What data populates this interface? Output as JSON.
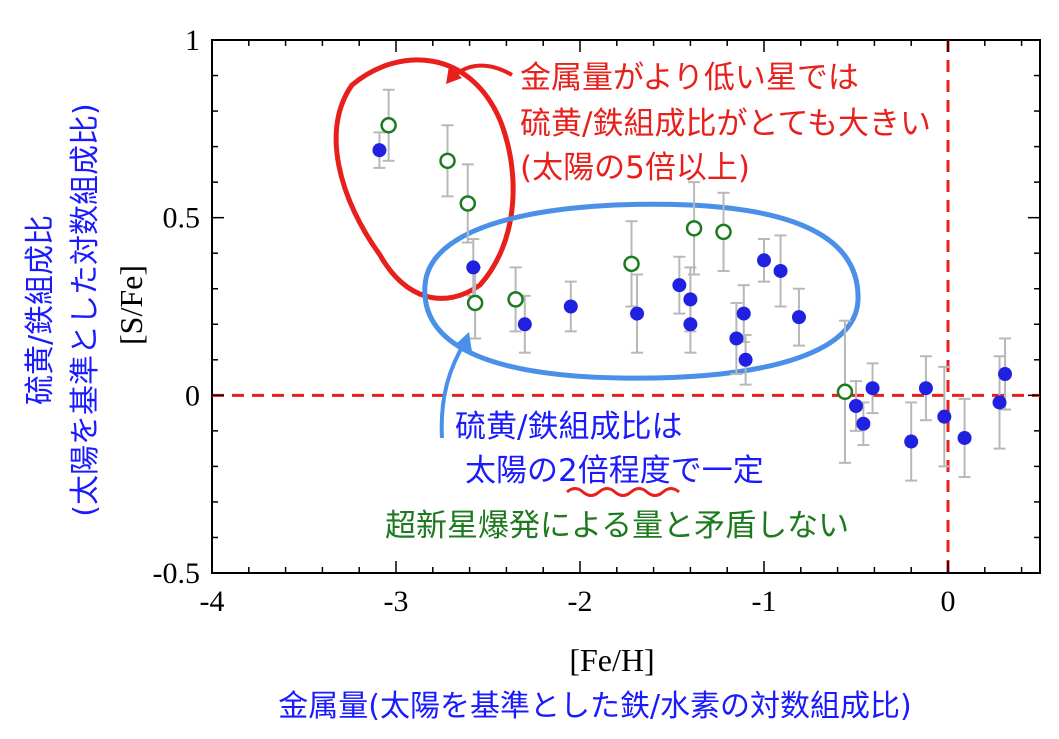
{
  "chart_data": {
    "type": "scatter",
    "xlabel": "[Fe/H]",
    "ylabel": "[S/Fe]",
    "xlim": [
      -4,
      0.5
    ],
    "ylim": [
      -0.5,
      1
    ],
    "x_ticks": [
      -4,
      -3,
      -2,
      -1,
      0
    ],
    "x_tick_labels": [
      "-4",
      "-3",
      "-2",
      "-1",
      "0"
    ],
    "y_ticks": [
      -0.5,
      0,
      0.5,
      1
    ],
    "y_tick_labels": [
      "-0.5",
      "0",
      "0.5",
      "1"
    ],
    "grid": false,
    "reference_lines": {
      "x": 0,
      "y": 0,
      "color": "#e8201c",
      "style": "dashed"
    },
    "series": [
      {
        "marker": "filled-circle",
        "color": "#2020e0",
        "points": [
          {
            "x": -3.09,
            "y": 0.69,
            "err": 0.05
          },
          {
            "x": -2.58,
            "y": 0.36,
            "err": 0.08
          },
          {
            "x": -2.3,
            "y": 0.2,
            "err": 0.08
          },
          {
            "x": -2.05,
            "y": 0.25,
            "err": 0.07
          },
          {
            "x": -1.69,
            "y": 0.23,
            "err": 0.11
          },
          {
            "x": -1.46,
            "y": 0.31,
            "err": 0.08
          },
          {
            "x": -1.4,
            "y": 0.27,
            "err": 0.09
          },
          {
            "x": -1.4,
            "y": 0.2,
            "err": 0.08
          },
          {
            "x": -1.15,
            "y": 0.16,
            "err": 0.1
          },
          {
            "x": -1.11,
            "y": 0.23,
            "err": 0.08
          },
          {
            "x": -1.1,
            "y": 0.1,
            "err": 0.07
          },
          {
            "x": -1.0,
            "y": 0.38,
            "err": 0.06
          },
          {
            "x": -0.91,
            "y": 0.35,
            "err": 0.1
          },
          {
            "x": -0.81,
            "y": 0.22,
            "err": 0.08
          },
          {
            "x": -0.5,
            "y": -0.03,
            "err": 0.07
          },
          {
            "x": -0.46,
            "y": -0.08,
            "err": 0.06
          },
          {
            "x": -0.41,
            "y": 0.02,
            "err": 0.07
          },
          {
            "x": -0.2,
            "y": -0.13,
            "err": 0.11
          },
          {
            "x": -0.12,
            "y": 0.02,
            "err": 0.09
          },
          {
            "x": -0.02,
            "y": -0.06,
            "err": 0.14
          },
          {
            "x": 0.09,
            "y": -0.12,
            "err": 0.11
          },
          {
            "x": 0.28,
            "y": -0.02,
            "err": 0.13
          },
          {
            "x": 0.31,
            "y": 0.06,
            "err": 0.1
          }
        ]
      },
      {
        "marker": "open-circle",
        "color": "#1e7a1e",
        "points": [
          {
            "x": -3.04,
            "y": 0.76,
            "err": 0.1
          },
          {
            "x": -2.72,
            "y": 0.66,
            "err": 0.1
          },
          {
            "x": -2.61,
            "y": 0.54,
            "err": 0.11
          },
          {
            "x": -2.57,
            "y": 0.26,
            "err": 0.1
          },
          {
            "x": -2.35,
            "y": 0.27,
            "err": 0.09
          },
          {
            "x": -1.72,
            "y": 0.37,
            "err": 0.12
          },
          {
            "x": -1.38,
            "y": 0.47,
            "err": 0.13
          },
          {
            "x": -1.22,
            "y": 0.46,
            "err": 0.11
          },
          {
            "x": -0.56,
            "y": 0.01,
            "err": 0.2
          }
        ]
      }
    ]
  },
  "annotations": {
    "red_note": {
      "line1": "金属量がより低い星では",
      "line2": "硫黄/鉄組成比がとても大きい",
      "line3": "(太陽の5倍以上)",
      "color": "#e8201c"
    },
    "blue_note": {
      "line1": "硫黄/鉄組成比は",
      "line2_prefix": "太陽の",
      "line2_emphasis": "2倍程度",
      "line2_suffix": "で一定",
      "color": "#1a1aff"
    },
    "green_note": {
      "text": "超新星爆発による量と矛盾しない",
      "color": "#1e7a1e"
    },
    "y_label_jp_line1": "硫黄/鉄組成比",
    "y_label_jp_line2": "(太陽を基準とした対数組成比)",
    "x_label_jp": "金属量(太陽を基準とした鉄/水素の対数組成比)"
  }
}
